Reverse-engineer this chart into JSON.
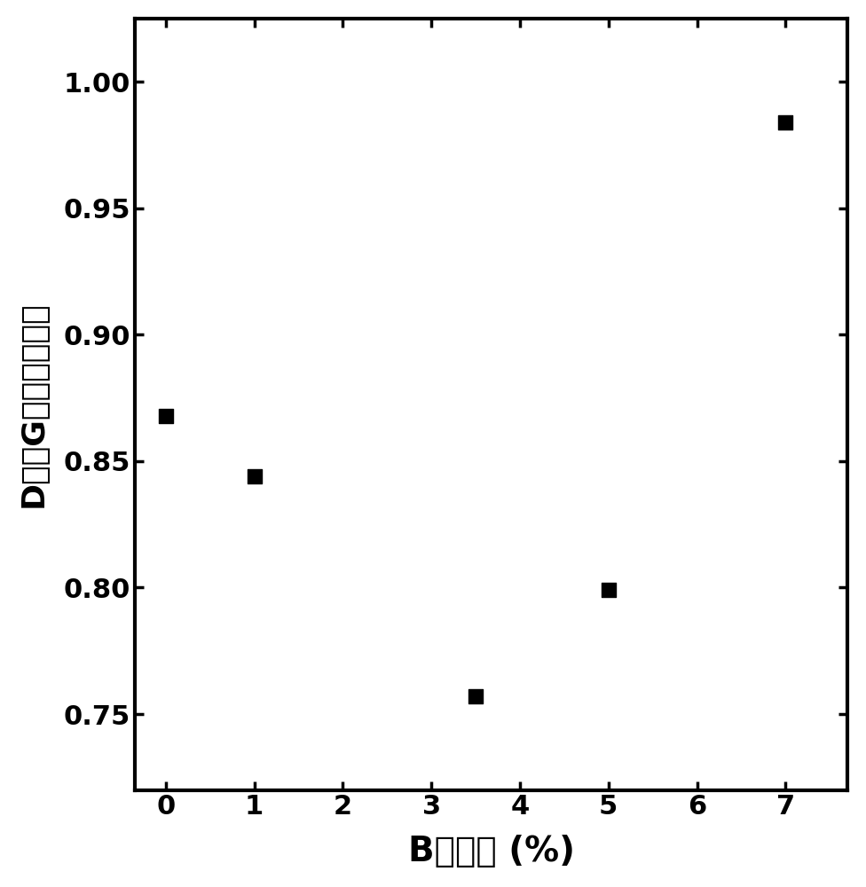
{
  "x": [
    0,
    1,
    3.5,
    5,
    7
  ],
  "y": [
    0.868,
    0.844,
    0.757,
    0.799,
    0.984
  ],
  "xlabel": "B负载量 (%)",
  "ylabel": "D带与G带的峰面积比",
  "xlim": [
    -0.35,
    7.7
  ],
  "ylim": [
    0.72,
    1.025
  ],
  "xticks": [
    0,
    1,
    2,
    3,
    4,
    5,
    6,
    7
  ],
  "yticks": [
    0.75,
    0.8,
    0.85,
    0.9,
    0.95,
    1.0
  ],
  "marker": "s",
  "marker_color": "#000000",
  "marker_size": 130,
  "background_color": "#ffffff",
  "axis_linewidth": 3.0,
  "tick_labelsize": 22,
  "xlabel_fontsize": 28,
  "ylabel_fontsize": 26
}
